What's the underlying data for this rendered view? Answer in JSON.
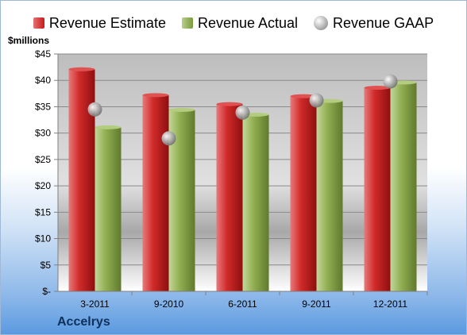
{
  "legend": {
    "items": [
      {
        "label": "Revenue Estimate",
        "icon": "red-square-swatch",
        "color": "#c81a1a"
      },
      {
        "label": "Revenue Actual",
        "icon": "green-square-swatch",
        "color": "#8aa84a"
      },
      {
        "label": "Revenue GAAP",
        "icon": "gray-circle-swatch",
        "color": "#9a9a9a"
      }
    ]
  },
  "units_label": "$millions",
  "company": "Accelrys",
  "chart_data": {
    "type": "bar",
    "categories": [
      "3-2011",
      "9-2010",
      "6-2011",
      "9-2011",
      "12-2011"
    ],
    "series": [
      {
        "name": "Revenue Estimate",
        "kind": "bar",
        "color": "#c81a1a",
        "values": [
          42.1,
          37.2,
          35.5,
          37.0,
          38.6
        ]
      },
      {
        "name": "Revenue Actual",
        "kind": "bar",
        "color": "#8aa84a",
        "values": [
          31.1,
          34.4,
          33.5,
          36.1,
          39.6
        ]
      },
      {
        "name": "Revenue GAAP",
        "kind": "marker",
        "color": "#9a9a9a",
        "values": [
          34.5,
          29.0,
          33.9,
          36.2,
          39.8
        ]
      }
    ],
    "ylim": [
      0,
      45
    ],
    "yticks": [
      0,
      5,
      10,
      15,
      20,
      25,
      30,
      35,
      40,
      45
    ],
    "ytick_labels": [
      "$-",
      "$5",
      "$10",
      "$15",
      "$20",
      "$25",
      "$30",
      "$35",
      "$40",
      "$45"
    ],
    "grid": true,
    "legend_position": "top"
  }
}
